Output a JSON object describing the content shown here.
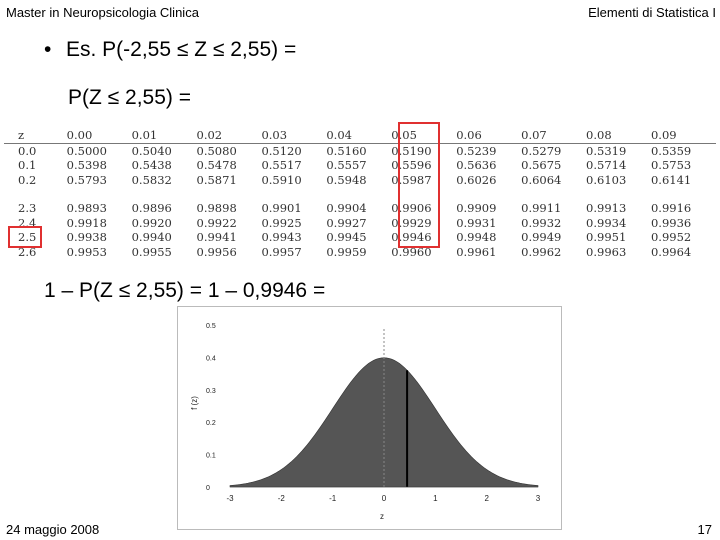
{
  "header": {
    "left": "Master in Neuropsicologia Clinica",
    "right": "Elementi di Statistica I"
  },
  "slide": {
    "bullet": "•",
    "line1": "Es. P(-2,55 ≤ Z ≤ 2,55) =",
    "line2": "P(Z ≤ 2,55) =",
    "line3": "1 – P(Z ≤ 2,55) = 1 – 0,9946 ="
  },
  "ztable": {
    "header": [
      "z",
      "0.00",
      "0.01",
      "0.02",
      "0.03",
      "0.04",
      "0.05",
      "0.06",
      "0.07",
      "0.08",
      "0.09"
    ],
    "rows_top": [
      [
        "0.0",
        "0.5000",
        "0.5040",
        "0.5080",
        "0.5120",
        "0.5160",
        "0.5190",
        "0.5239",
        "0.5279",
        "0.5319",
        "0.5359"
      ],
      [
        "0.1",
        "0.5398",
        "0.5438",
        "0.5478",
        "0.5517",
        "0.5557",
        "0.5596",
        "0.5636",
        "0.5675",
        "0.5714",
        "0.5753"
      ],
      [
        "0.2",
        "0.5793",
        "0.5832",
        "0.5871",
        "0.5910",
        "0.5948",
        "0.5987",
        "0.6026",
        "0.6064",
        "0.6103",
        "0.6141"
      ]
    ],
    "rows_bottom": [
      [
        "2.3",
        "0.9893",
        "0.9896",
        "0.9898",
        "0.9901",
        "0.9904",
        "0.9906",
        "0.9909",
        "0.9911",
        "0.9913",
        "0.9916"
      ],
      [
        "2.4",
        "0.9918",
        "0.9920",
        "0.9922",
        "0.9925",
        "0.9927",
        "0.9929",
        "0.9931",
        "0.9932",
        "0.9934",
        "0.9936"
      ],
      [
        "2.5",
        "0.9938",
        "0.9940",
        "0.9941",
        "0.9943",
        "0.9945",
        "0.9946",
        "0.9948",
        "0.9949",
        "0.9951",
        "0.9952"
      ],
      [
        "2.6",
        "0.9953",
        "0.9955",
        "0.9956",
        "0.9957",
        "0.9959",
        "0.9960",
        "0.9961",
        "0.9962",
        "0.9963",
        "0.9964"
      ]
    ],
    "highlight_color": "#e03030"
  },
  "chart_data": {
    "type": "area",
    "xlabel": "z",
    "ylabel": "f (z)",
    "xlim": [
      -3,
      3
    ],
    "ylim": [
      0,
      0.5
    ],
    "x_ticks": [
      "-3",
      "-2",
      "-1",
      "0",
      "1",
      "2",
      "3"
    ],
    "y_ticks": [
      "0",
      "0.1",
      "0.2",
      "0.3",
      "0.4",
      "0.5"
    ],
    "fill_color": "#555555",
    "marker_z": 0.45,
    "mean_line_z": 0
  },
  "footer": {
    "date": "24 maggio 2008",
    "page": "17"
  }
}
